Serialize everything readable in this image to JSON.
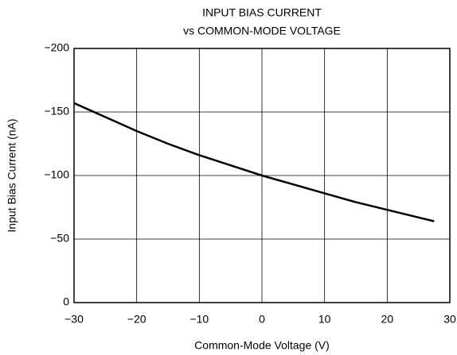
{
  "chart_data": {
    "type": "line",
    "title": "INPUT BIAS CURRENT",
    "subtitle": "vs COMMON-MODE VOLTAGE",
    "x_label": "Common-Mode Voltage (V)",
    "y_label": "Input Bias Current (nA)",
    "x": [
      -30,
      -25,
      -20,
      -15,
      -10,
      -5,
      0,
      5,
      10,
      15,
      20,
      25,
      27.5
    ],
    "series": [
      {
        "name": null,
        "color": "#000000",
        "values": [
          -157,
          -146,
          -135,
          -125,
          -116,
          -108,
          -100,
          -93,
          -86,
          -79,
          -73,
          -67,
          -64
        ]
      }
    ],
    "xlim": [
      -30,
      30
    ],
    "xticks": [
      {
        "value": -30,
        "label": "−30"
      },
      {
        "value": -20,
        "label": "−20"
      },
      {
        "value": -10,
        "label": "−10"
      },
      0,
      10,
      20,
      30
    ],
    "ylim": [
      0,
      -200
    ],
    "yticks": [
      0,
      {
        "value": -50,
        "label": "−50"
      },
      {
        "value": -100,
        "label": "−100"
      },
      {
        "value": -150,
        "label": "−150"
      },
      {
        "value": -200,
        "label": "−200"
      }
    ],
    "grid": true
  }
}
